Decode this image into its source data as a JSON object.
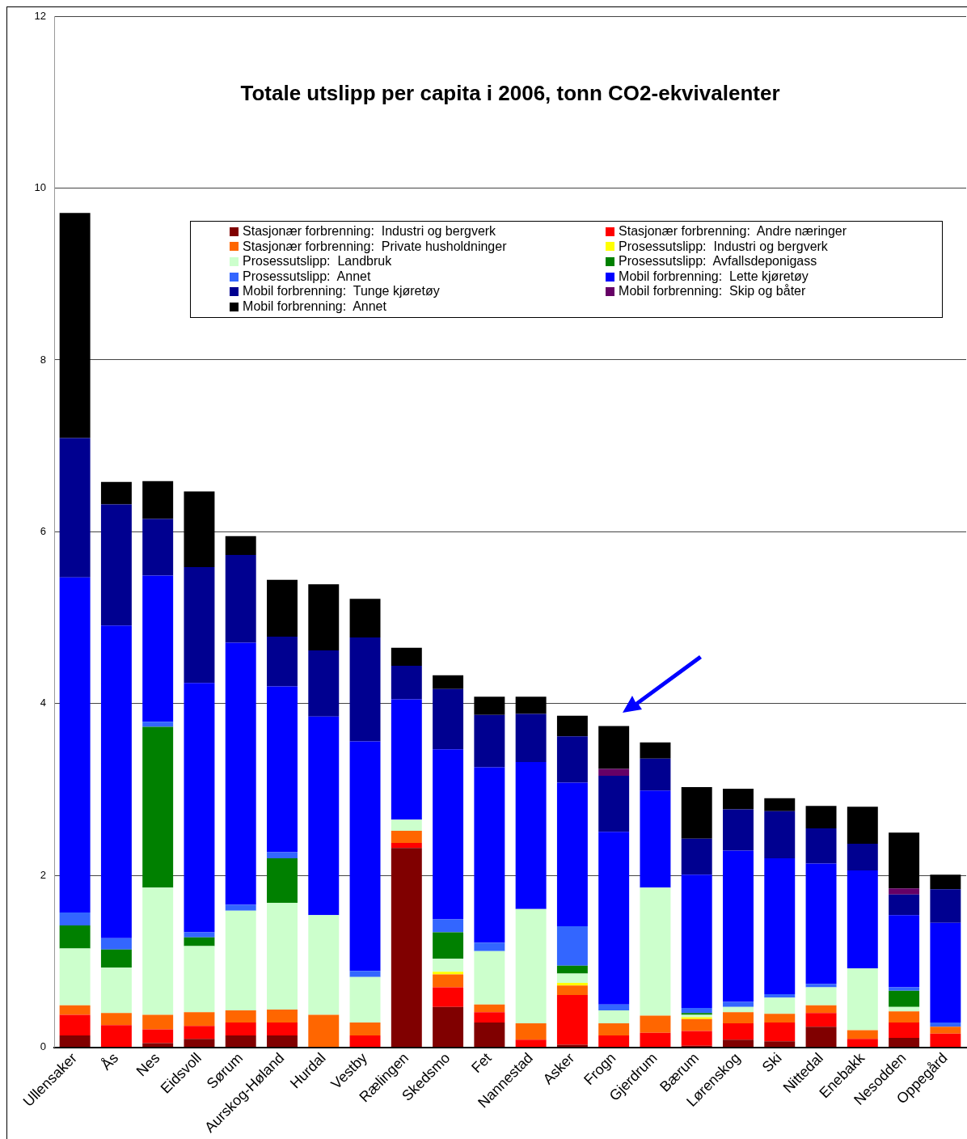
{
  "chart_data": {
    "type": "bar",
    "title": "Totale utslipp per capita i 2006, tonn CO2-ekvivalenter",
    "stacked": true,
    "grid": "y",
    "legend": "top",
    "categories": [
      "Ullensaker",
      "Ås",
      "Nes",
      "Eidsvoll",
      "Sørum",
      "Aurskog-Høland",
      "Hurdal",
      "Vestby",
      "Rælingen",
      "Skedsmo",
      "Fet",
      "Nannestad",
      "Asker",
      "Frogn",
      "Gjerdrum",
      "Bærum",
      "Lørenskog",
      "Ski",
      "Nittedal",
      "Enebakk",
      "Nesodden",
      "Oppegård"
    ],
    "ylim": [
      0,
      12
    ],
    "yticks": [
      0,
      2,
      4,
      6,
      8,
      10,
      12
    ],
    "series": [
      {
        "name": "Stasjonær forbrenning:  Industri og bergverk",
        "color": "#800000",
        "values": [
          0.14,
          0,
          0.05,
          0.1,
          0.14,
          0.14,
          0,
          0,
          2.32,
          0.47,
          0.29,
          0,
          0.03,
          0,
          0,
          0.02,
          0.09,
          0.07,
          0.24,
          0,
          0.11,
          0
        ]
      },
      {
        "name": "Stasjonær forbrenning:  Andre næringer",
        "color": "#ff0000",
        "values": [
          0.24,
          0.26,
          0.16,
          0.15,
          0.15,
          0.15,
          0,
          0.14,
          0.06,
          0.23,
          0.12,
          0.09,
          0.58,
          0.14,
          0.17,
          0.17,
          0.19,
          0.22,
          0.16,
          0.1,
          0.18,
          0.16
        ]
      },
      {
        "name": "Stasjonær forbrenning:  Private husholdninger",
        "color": "#ff6600",
        "values": [
          0.11,
          0.14,
          0.17,
          0.16,
          0.14,
          0.15,
          0.38,
          0.15,
          0.14,
          0.15,
          0.09,
          0.19,
          0.11,
          0.14,
          0.2,
          0.14,
          0.13,
          0.1,
          0.09,
          0.1,
          0.13,
          0.08
        ]
      },
      {
        "name": "Prosessutslipp:  Industri og bergverk",
        "color": "#ffff00",
        "values": [
          0,
          0,
          0,
          0,
          0,
          0,
          0,
          0,
          0,
          0.03,
          0,
          0,
          0.03,
          0,
          0,
          0.02,
          0,
          0,
          0,
          0,
          0,
          0
        ]
      },
      {
        "name": "Prosessutslipp:  Landbruk",
        "color": "#ccffcc",
        "values": [
          0.66,
          0.53,
          1.48,
          0.77,
          1.16,
          1.24,
          1.16,
          0.53,
          0.13,
          0.15,
          0.62,
          1.33,
          0.11,
          0.15,
          1.49,
          0.03,
          0.06,
          0.19,
          0.21,
          0.72,
          0.05,
          0
        ]
      },
      {
        "name": "Prosessutslipp:  Avfallsdeponigass",
        "color": "#008000",
        "values": [
          0.27,
          0.21,
          1.87,
          0.1,
          0,
          0.52,
          0,
          0,
          0,
          0.31,
          0,
          0,
          0.09,
          0,
          0,
          0.02,
          0,
          0,
          0,
          0,
          0.19,
          0
        ]
      },
      {
        "name": "Prosessutslipp:  Annet",
        "color": "#3366ff",
        "values": [
          0.15,
          0.13,
          0.06,
          0.06,
          0.07,
          0.07,
          0,
          0.07,
          0,
          0.15,
          0.1,
          0,
          0.46,
          0.07,
          0,
          0.06,
          0.06,
          0.04,
          0.04,
          0,
          0.04,
          0.05
        ]
      },
      {
        "name": "Mobil forbrenning:  Lette kjøretøy",
        "color": "#0000ff",
        "values": [
          3.9,
          3.64,
          1.7,
          2.9,
          3.05,
          1.93,
          2.31,
          2.67,
          1.4,
          1.98,
          2.04,
          1.71,
          1.67,
          2.01,
          1.13,
          1.55,
          1.76,
          1.58,
          1.4,
          1.14,
          0.84,
          1.16
        ]
      },
      {
        "name": "Mobil forbrenning:  Tunge kjøretøy",
        "color": "#000090",
        "values": [
          1.62,
          1.41,
          0.66,
          1.35,
          1.02,
          0.58,
          0.77,
          1.21,
          0.39,
          0.7,
          0.61,
          0.56,
          0.54,
          0.65,
          0.37,
          0.42,
          0.48,
          0.55,
          0.41,
          0.31,
          0.24,
          0.39
        ]
      },
      {
        "name": "Mobil forbrenning:  Skip og båter",
        "color": "#660066",
        "values": [
          0,
          0,
          0,
          0,
          0,
          0,
          0,
          0,
          0,
          0,
          0,
          0,
          0,
          0.08,
          0,
          0,
          0,
          0,
          0,
          0,
          0.07,
          0
        ]
      },
      {
        "name": "Mobil forbrenning:  Annet",
        "color": "#000000",
        "values": [
          2.62,
          0.26,
          0.44,
          0.88,
          0.22,
          0.66,
          0.77,
          0.45,
          0.21,
          0.16,
          0.21,
          0.2,
          0.24,
          0.5,
          0.19,
          0.6,
          0.24,
          0.15,
          0.26,
          0.43,
          0.65,
          0.17
        ]
      }
    ]
  }
}
